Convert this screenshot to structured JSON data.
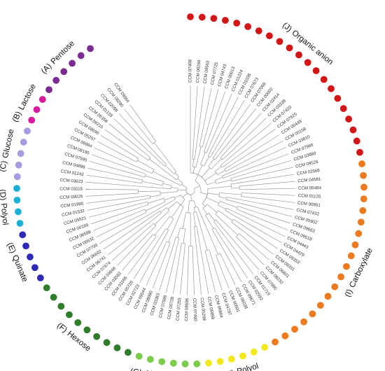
{
  "figure": {
    "groups": [
      {
        "label": "(A)",
        "name": "Pentose",
        "color": "#7b2b93",
        "leaves": [
          "CCM 09964",
          "CCM 08280",
          "CCM 02098",
          "CCM 01139",
          "CCM 06358",
          "CCM 09215"
        ]
      },
      {
        "label": "(B)",
        "name": "Lactose",
        "color": "#d91aa0",
        "leaves": [
          "CCM 08690",
          "CCM 05297",
          "CCM 06994"
        ]
      },
      {
        "label": "(C)",
        "name": "Glucose",
        "color": "#a89ae0",
        "leaves": [
          "CCM 08180",
          "CCM 07590",
          "CCM 04698",
          "CCM 01242",
          "CCM 03623"
        ]
      },
      {
        "label": "(D)",
        "name": "Polyol",
        "color": "#1cb0d6",
        "leaves": [
          "CCM 03115",
          "CCM 09026",
          "CCM 01990",
          "CCM 01532"
        ]
      },
      {
        "label": "(E)",
        "name": "Quinate",
        "color": "#2e2ab8",
        "leaves": [
          "CCM 05521",
          "CCM 00189",
          "CCM 08598",
          "CCM 06632",
          "CCM 07700"
        ]
      },
      {
        "label": "(F)",
        "name": "Hexose",
        "color": "#2f7d2a",
        "leaves": [
          "CCM 06602",
          "CCM 06741",
          "CCM 07674",
          "CCM 04846",
          "CCM 03583",
          "CCM 01166",
          "CCM 05720",
          "CCM 02723",
          "CCM 09544",
          "CCM 08090"
        ]
      },
      {
        "label": "(G)",
        "name": "Alpha-glucoside",
        "color": "#7ccb4a",
        "leaves": [
          "CCM 02083",
          "CCM 07588",
          "CCM 00728",
          "CCM 07255",
          "CCM 08696",
          "CCM 07490"
        ]
      },
      {
        "label": "(H)",
        "name": "Polyol",
        "color": "#f2e81a",
        "leaves": [
          "CCM 05298",
          "CCM 06999",
          "CCM 06884",
          "CCM 04797",
          "CCM 00501",
          "CCM 06038"
        ]
      },
      {
        "label": "(I)",
        "name": "Carboxylate",
        "color": "#ee7a1f",
        "leaves": [
          "CCM 09671",
          "CCM 02592",
          "CCM 01719",
          "CCM 07990",
          "CCM 08232",
          "CCM 06601",
          "CCM 09331",
          "CCM 09353",
          "CCM 04429",
          "CCM 04443",
          "CCM 09518",
          "CCM 09653",
          "CCM 05902",
          "CCM 07432",
          "CCM 00951",
          "CCM 01120",
          "CCM 06484",
          "CCM 04581",
          "CCM 02568"
        ]
      },
      {
        "label": "(J)",
        "name": "Organic anion",
        "color": "#d41515",
        "leaves": [
          "CCM 09526",
          "CCM 03880",
          "CCM 07968",
          "CCM 03810",
          "CCM 00158",
          "CCM 00449",
          "CCM 07625",
          "CCM 07420",
          "CCM 03338",
          "CCM 02414",
          "CCM 00002",
          "CCM 07068",
          "CCM 07673",
          "CCM 01038",
          "CCM 01224",
          "CCM 00013",
          "CCM 04743",
          "CCM 07725",
          "CCM 09563",
          "CCM 00266",
          "CCM 07408"
        ]
      }
    ]
  }
}
